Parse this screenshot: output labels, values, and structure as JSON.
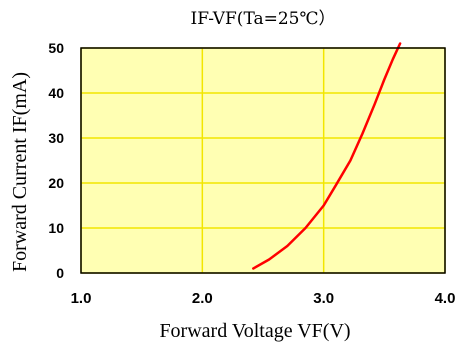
{
  "chart_data": {
    "type": "line",
    "title": "IF-VF(Ta=25℃）",
    "xlabel": "Forward Voltage VF(V)",
    "ylabel": "Forward Current IF(mA)",
    "xlim": [
      1.0,
      4.0
    ],
    "ylim": [
      0,
      50
    ],
    "x_ticks": [
      "1.0",
      "2.0",
      "3.0",
      "4.0"
    ],
    "y_ticks": [
      "0",
      "10",
      "20",
      "30",
      "40",
      "50"
    ],
    "grid": true,
    "background_color": "#ffffb3",
    "grid_color": "#f2e600",
    "series": [
      {
        "color": "#ff0000",
        "x": [
          2.42,
          2.55,
          2.7,
          2.85,
          3.0,
          3.1,
          3.22,
          3.32,
          3.42,
          3.5,
          3.57,
          3.63
        ],
        "y": [
          1,
          3,
          6,
          10,
          15,
          19.5,
          25,
          31,
          37.5,
          43,
          47.5,
          51
        ]
      }
    ]
  }
}
